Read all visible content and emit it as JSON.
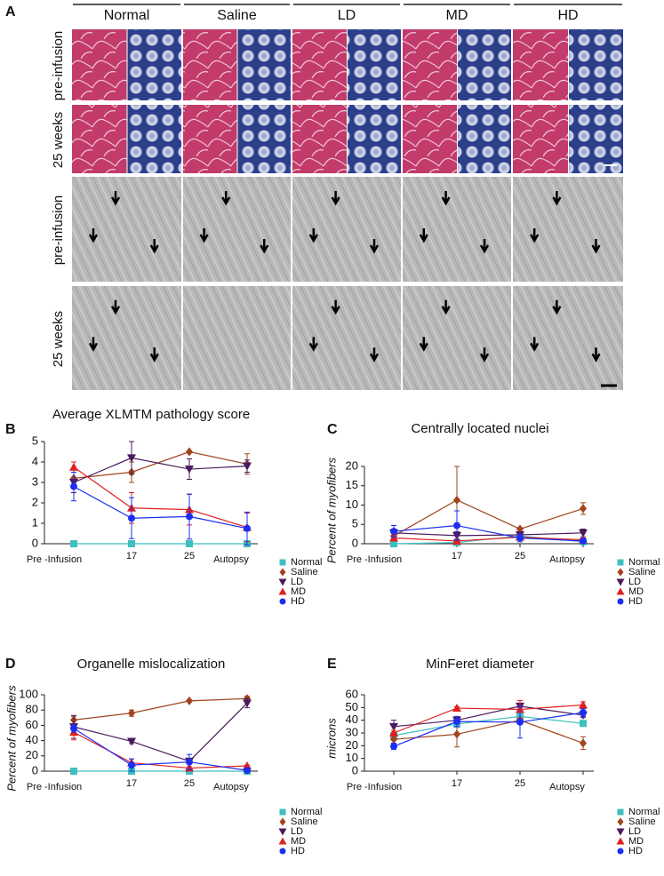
{
  "panel_a": {
    "letter": "A",
    "columns": [
      "Normal",
      "Saline",
      "LD",
      "MD",
      "HD"
    ],
    "rows": [
      "pre-infusion",
      "25 weeks",
      "pre-infusion",
      "25 weeks"
    ]
  },
  "chart_data": [
    {
      "type": "line",
      "letter": "B",
      "title": "Average XLMTM pathology score",
      "categories": [
        "Pre -Infusion",
        "17",
        "25",
        "Autopsy"
      ],
      "ylim": [
        0,
        5
      ],
      "yticks": [
        0,
        1,
        2,
        3,
        4,
        5
      ],
      "legend": "right",
      "series": [
        {
          "name": "Normal",
          "color": "#3fbfbf",
          "marker": "square",
          "values": [
            0,
            0,
            0,
            0
          ]
        },
        {
          "name": "Saline",
          "color": "#a1441c",
          "marker": "diamond",
          "values": [
            3.2,
            3.5,
            4.5,
            3.9
          ],
          "errors": [
            0.3,
            0.5,
            0,
            0.5
          ]
        },
        {
          "name": "LD",
          "color": "#4b1a5c",
          "marker": "triangle-down",
          "values": [
            3.0,
            4.2,
            3.65,
            3.8
          ],
          "errors": [
            0.5,
            0.8,
            0.5,
            0.3
          ]
        },
        {
          "name": "MD",
          "color": "#e02020",
          "marker": "triangle-up",
          "values": [
            3.75,
            1.75,
            1.67,
            0.8
          ],
          "errors": [
            0.25,
            0.75,
            0.75,
            0.7
          ]
        },
        {
          "name": "HD",
          "color": "#1c2ef0",
          "marker": "circle",
          "values": [
            2.8,
            1.25,
            1.33,
            0.75
          ],
          "errors": [
            0.7,
            1.0,
            1.1,
            0.8
          ]
        }
      ]
    },
    {
      "type": "line",
      "letter": "C",
      "title": "Centrally located nuclei",
      "y_label": "Percent of myofibers",
      "categories": [
        "Pre -Infusion",
        "17",
        "25",
        "Autopsy"
      ],
      "ylim": [
        0,
        20
      ],
      "yticks": [
        0,
        5,
        10,
        15,
        20
      ],
      "legend": "right",
      "series": [
        {
          "name": "Normal",
          "color": "#3fbfbf",
          "marker": "square",
          "values": [
            0,
            0.3,
            2.0,
            0.5
          ],
          "errors": [
            0,
            0.2,
            0.5,
            0.2
          ]
        },
        {
          "name": "Saline",
          "color": "#a1441c",
          "marker": "diamond",
          "values": [
            2.0,
            11.3,
            3.8,
            9.1
          ],
          "errors": [
            0.7,
            8.7,
            0.3,
            1.5
          ]
        },
        {
          "name": "LD",
          "color": "#4b1a5c",
          "marker": "triangle-down",
          "values": [
            2.8,
            2.1,
            2.3,
            2.8
          ],
          "errors": [
            1.0,
            1.0,
            0.7,
            1.0
          ]
        },
        {
          "name": "MD",
          "color": "#e02020",
          "marker": "triangle-up",
          "values": [
            1.5,
            0.7,
            1.7,
            1.0
          ],
          "errors": [
            0.7,
            0.5,
            0.5,
            0.5
          ]
        },
        {
          "name": "HD",
          "color": "#1c2ef0",
          "marker": "circle",
          "values": [
            3.2,
            4.7,
            1.5,
            0.7
          ],
          "errors": [
            1.5,
            3.8,
            1.0,
            0.5
          ]
        }
      ]
    },
    {
      "type": "line",
      "letter": "D",
      "title": "Organelle mislocalization",
      "y_label": "Percent of myofibers",
      "categories": [
        "Pre -Infusion",
        "17",
        "25",
        "Autopsy"
      ],
      "ylim": [
        0,
        100
      ],
      "yticks": [
        0,
        20,
        40,
        60,
        80,
        100
      ],
      "legend": "right",
      "series": [
        {
          "name": "Normal",
          "color": "#3fbfbf",
          "marker": "square",
          "values": [
            0,
            0,
            0,
            0
          ]
        },
        {
          "name": "Saline",
          "color": "#a1441c",
          "marker": "diamond",
          "values": [
            67,
            76,
            92,
            95
          ],
          "errors": [
            5,
            4,
            1,
            3
          ]
        },
        {
          "name": "LD",
          "color": "#4b1a5c",
          "marker": "triangle-down",
          "values": [
            58,
            39,
            13,
            89
          ],
          "errors": [
            15,
            3,
            2,
            6
          ]
        },
        {
          "name": "MD",
          "color": "#e02020",
          "marker": "triangle-up",
          "values": [
            51,
            11,
            4,
            7
          ],
          "errors": [
            10,
            5,
            2,
            1
          ]
        },
        {
          "name": "HD",
          "color": "#1c2ef0",
          "marker": "circle",
          "values": [
            56,
            8,
            12,
            1
          ],
          "errors": [
            5,
            8,
            10,
            2
          ]
        }
      ]
    },
    {
      "type": "line",
      "letter": "E",
      "title": "MinFeret diameter",
      "y_label": "microns",
      "categories": [
        "Pre -Infusion",
        "17",
        "25",
        "Autopsy"
      ],
      "ylim": [
        0,
        60
      ],
      "yticks": [
        0,
        10,
        20,
        30,
        40,
        50,
        60
      ],
      "legend": "right",
      "series": [
        {
          "name": "Normal",
          "color": "#3fbfbf",
          "marker": "square",
          "values": [
            28,
            37,
            43,
            37.5
          ],
          "errors": [
            2,
            2,
            2,
            1
          ]
        },
        {
          "name": "Saline",
          "color": "#a1441c",
          "marker": "diamond",
          "values": [
            25,
            29,
            40,
            22
          ],
          "errors": [
            3,
            10,
            1,
            5
          ]
        },
        {
          "name": "LD",
          "color": "#4b1a5c",
          "marker": "triangle-down",
          "values": [
            35,
            40,
            51,
            44
          ],
          "errors": [
            5,
            2,
            1,
            2
          ]
        },
        {
          "name": "MD",
          "color": "#e02020",
          "marker": "triangle-up",
          "values": [
            30,
            49.5,
            48.5,
            52
          ],
          "errors": [
            2,
            1,
            7,
            2.5
          ]
        },
        {
          "name": "HD",
          "color": "#1c2ef0",
          "marker": "circle",
          "values": [
            19.5,
            39,
            38.5,
            46
          ],
          "errors": [
            2.5,
            4,
            12.5,
            3
          ]
        }
      ]
    }
  ]
}
